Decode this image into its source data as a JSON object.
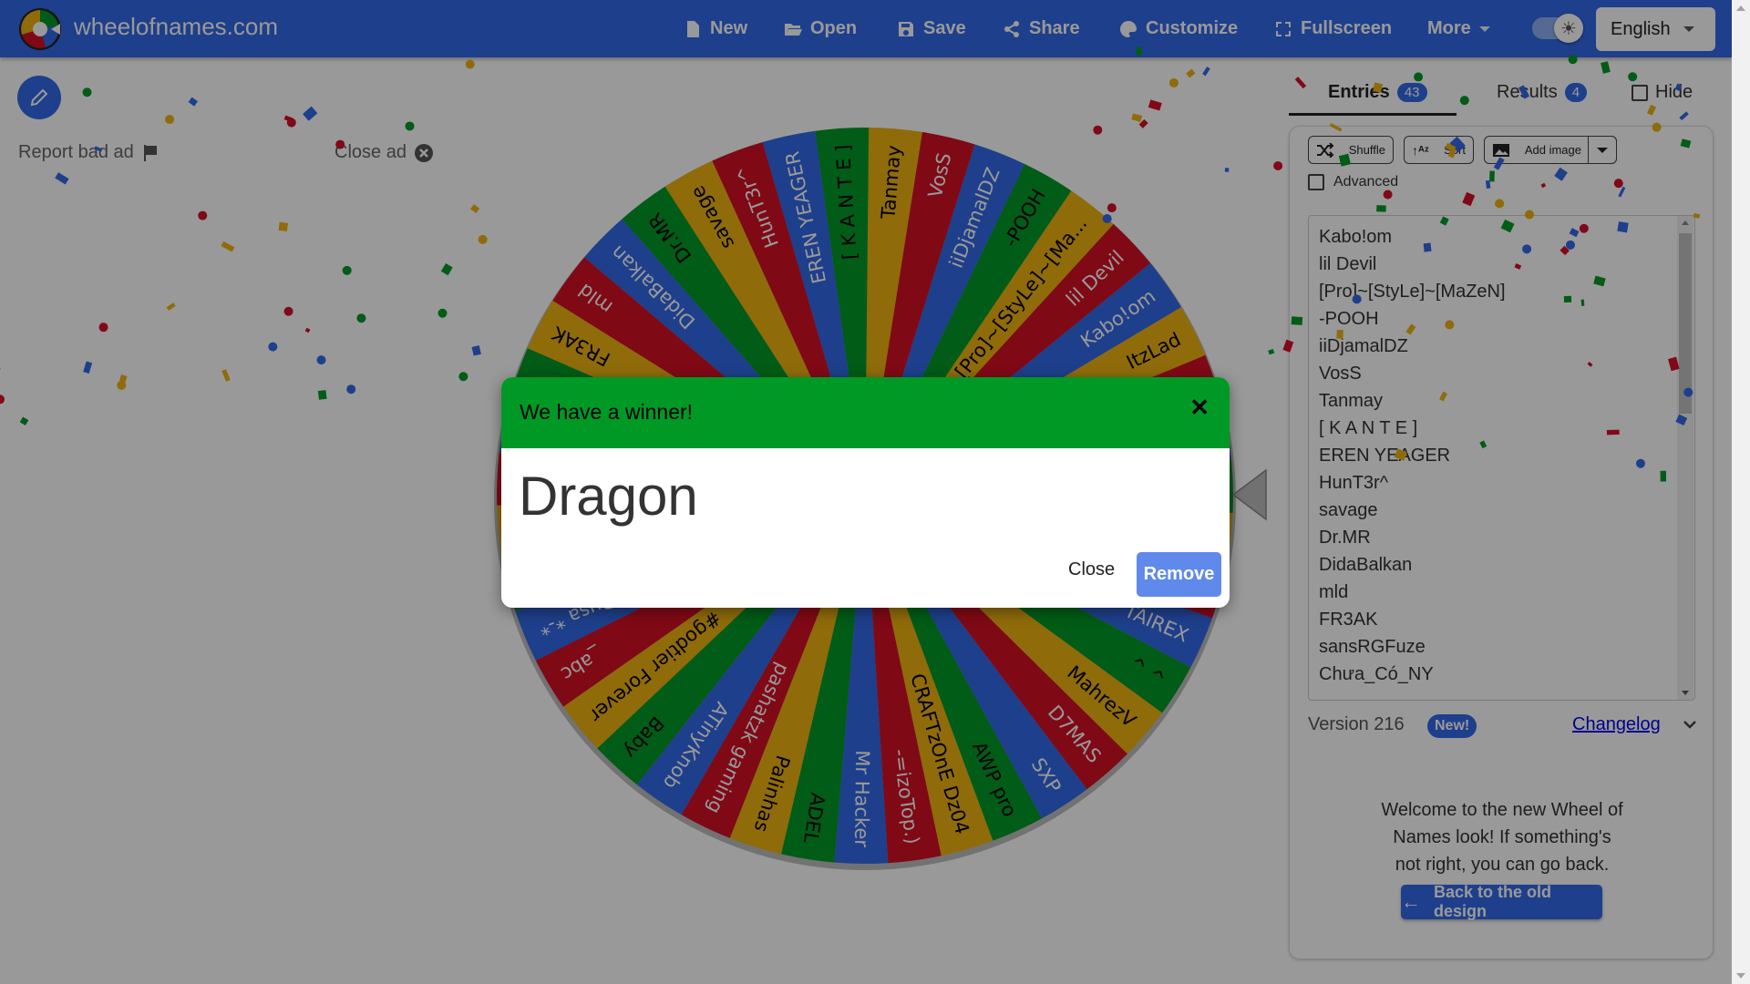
{
  "header": {
    "site_name": "wheelofnames.com",
    "nav": [
      {
        "label": "New",
        "icon": "file-icon"
      },
      {
        "label": "Open",
        "icon": "folder-open-icon"
      },
      {
        "label": "Save",
        "icon": "floppy-icon"
      },
      {
        "label": "Share",
        "icon": "share-icon"
      },
      {
        "label": "Customize",
        "icon": "palette-icon"
      },
      {
        "label": "Fullscreen",
        "icon": "fullscreen-icon"
      },
      {
        "label": "More",
        "icon": "caret-down-icon"
      }
    ],
    "language": "English",
    "accent_color": "#3369e8"
  },
  "ads": {
    "report_label": "Report bad ad",
    "close_label": "Close ad"
  },
  "wheel": {
    "colors": [
      "#3369e8",
      "#d50f25",
      "#eeb211",
      "#009925"
    ],
    "slices": [
      "Kabo!om",
      "lil Devil",
      "[Pro]~[StyLe]~[MaZeN]",
      "-POOH",
      "iiDjamalDZ",
      "VosS",
      "Tanmay",
      "[ K A N T E ]",
      "EREN YEAGER",
      "HunT3r^",
      "savage",
      "Dr.MR",
      "DidaBalkan",
      "mld",
      "FR3AK",
      "",
      "",
      "",
      "",
      "",
      "Dusa *-*",
      "_abc",
      "#godtier Forever",
      "Baby",
      "ATinyKnob",
      "pashatzk gaming",
      "Palinhas",
      "ADEL",
      "Mr Hacker",
      "-=izoTop.)",
      "CRAFTzOnE Dz04",
      "AWP pro",
      "SXP",
      "D7MAS",
      "MahrezV",
      "^ ^",
      "TAIREX",
      "",
      "",
      "Dragon",
      "",
      "",
      "ItzLad"
    ]
  },
  "sidebar": {
    "tabs": [
      {
        "label": "Entries",
        "count": "43"
      },
      {
        "label": "Results",
        "count": "4"
      }
    ],
    "hide_label": "Hide",
    "toolbar": {
      "shuffle": "Shuffle",
      "sort": "Sort",
      "add_image": "Add image"
    },
    "advanced_label": "Advanced",
    "entries": [
      "Kabo!om",
      "lil Devil",
      "[Pro]~[StyLe]~[MaZeN]",
      "-POOH",
      "iiDjamalDZ",
      "VosS",
      "Tanmay",
      "[ K A N T E ]",
      "EREN YEAGER",
      "HunT3r^",
      "savage",
      "Dr.MR",
      "DidaBalkan",
      "mld",
      "FR3AK",
      "sansRGFuze",
      "Chưa_Có_NY"
    ],
    "version": "Version 216",
    "new_badge": "New!",
    "changelog": "Changelog",
    "welcome_text": "Welcome to the new Wheel of Names look! If something's not right, you can go back.",
    "back_button": "Back to the old design"
  },
  "modal": {
    "title": "We have a winner!",
    "winner": "Dragon",
    "close_label": "Close",
    "remove_label": "Remove",
    "header_color": "#009925"
  }
}
